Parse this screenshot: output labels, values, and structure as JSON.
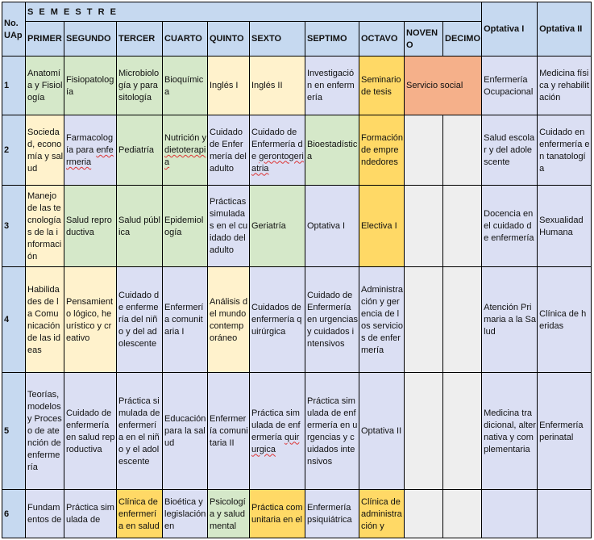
{
  "header": {
    "no_uap": "No. UAp",
    "semestre": "S E M E S T R E",
    "optativa1": "Optativa I",
    "optativa2": "Optativa II",
    "columns": [
      "PRIMER",
      "SEGUNDO",
      "TERCER",
      "CUARTO",
      "QUINTO",
      "SEXTO",
      "SEPTIMO",
      "OCTAVO",
      "NOVENO",
      "DECIMO"
    ]
  },
  "rows": [
    {
      "num": "1",
      "primer": "Anatomía y Fisiología",
      "segundo": "Fisiopatología",
      "tercer": "Microbiología y parasitología",
      "cuarto": "Bioquímica",
      "quinto": "Inglés I",
      "sexto": "Inglés II",
      "septimo": "Investigación en enfermería",
      "octavo": "Seminario de tesis",
      "noveno_decimo": "Servicio social",
      "opt1": "Enfermería Ocupacional",
      "opt2": "Medicina física y rehabilitación"
    },
    {
      "num": "2",
      "primer": "Sociedad, economía y salud",
      "segundo_a": "Farmacología para ",
      "segundo_b": "enfermeria",
      "tercer": "Pediatría",
      "cuarto_a": "Nutrición y ",
      "cuarto_b": "dietoterapia",
      "quinto": "Cuidado de Enfermería del adulto",
      "sexto_a": "Cuidado de Enfermería de ",
      "sexto_b": "gerontogeriatria",
      "septimo": "Bioestadística",
      "octavo": "Formación de emprendedores",
      "opt1": "Salud escolar y del adolescente",
      "opt2": "Cuidado en enfermería en tanatología"
    },
    {
      "num": "3",
      "primer": "Manejo de las tecnologías de la información",
      "segundo": "Salud reproductiva",
      "tercer": "Salud pública",
      "cuarto": "Epidemiología",
      "quinto": "Prácticas simuladas en el cuidado del adulto",
      "sexto": "Geriatría",
      "septimo": "Optativa I",
      "octavo": "Electiva I",
      "opt1": "Docencia en el cuidado de enfermería",
      "opt2": "Sexualidad Humana"
    },
    {
      "num": "4",
      "primer": "Habilidades de la Comunicación de las ideas",
      "segundo": "Pensamiento lógico, heurístico y creativo",
      "tercer": "Cuidado de enfermería del niño y del adolescente",
      "cuarto": "Enfermería comunitaria I",
      "quinto": "Análisis del mundo contemporáneo",
      "sexto": "Cuidados de enfermería quirúrgica",
      "septimo": "Cuidado de Enfermería en urgencias y cuidados intensivos",
      "octavo": "Administración y gerencia de los servicios de enfermería",
      "opt1": "Atención Primaria a la Salud",
      "opt2": "Clínica de heridas"
    },
    {
      "num": "5",
      "primer": "Teorías, modelos y Proceso de atención de enfermería",
      "segundo": "Cuidado de enfermería en salud reproductiva",
      "tercer": "Práctica simulada de enfermería en el niño y el adolescente",
      "cuarto": "Educación para la salud",
      "quinto": "Enfermería comunitaria II",
      "sexto_a": "Práctica simulada de enfermería ",
      "sexto_b": "quirurgica",
      "septimo": "Práctica simulada de enfermería en urgencias y cuidados intensivos",
      "octavo": "Optativa II",
      "opt1": "Medicina tradicional, alternativa y complementaria",
      "opt2": "Enfermería perinatal"
    },
    {
      "num": "6",
      "primer": "Fundamentos de",
      "segundo": "Práctica simulada de",
      "tercer": "Clínica de enfermería en salud",
      "cuarto": "Bioética y legislación en",
      "quinto": "Psicología y salud mental",
      "sexto": "Práctica comunitaria en el",
      "septimo": "Enfermería psiquiátrica",
      "octavo": "Clínica de administración y"
    }
  ]
}
